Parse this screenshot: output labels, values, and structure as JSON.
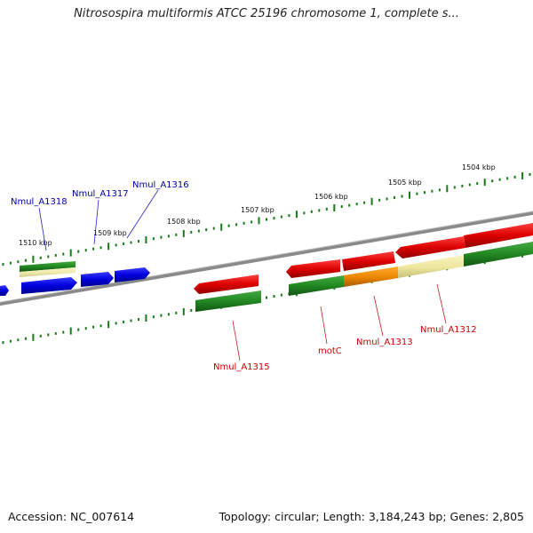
{
  "title": "Nitrosospira multiformis ATCC 25196 chromosome 1, complete s...",
  "footer": {
    "accession": "Accession: NC_007614",
    "summary": "Topology: circular; Length: 3,184,243 bp; Genes: 2,805"
  },
  "ruler_labels": [
    "1510 kbp",
    "1509 kbp",
    "1508 kbp",
    "1507 kbp",
    "1506 kbp",
    "1505 kbp",
    "1504 kbp"
  ],
  "gene_labels": {
    "nmul_a1318": "Nmul_A1318",
    "nmul_a1317": "Nmul_A1317",
    "nmul_a1316": "Nmul_A1316",
    "nmul_a1315": "Nmul_A1315",
    "motc": "motC",
    "nmul_a1313": "Nmul_A1313",
    "nmul_a1312": "Nmul_A1312"
  },
  "colors": {
    "genome_line": "#777777",
    "tick": "#1a7a1a",
    "blue_gene": "#0000dd",
    "red_gene": "#dd0000",
    "green_gene": "#228822",
    "orange_gene": "#ee8800",
    "khaki_gene": "#eee8a0",
    "blue_label": "#0000aa",
    "red_label": "#cc0000"
  }
}
